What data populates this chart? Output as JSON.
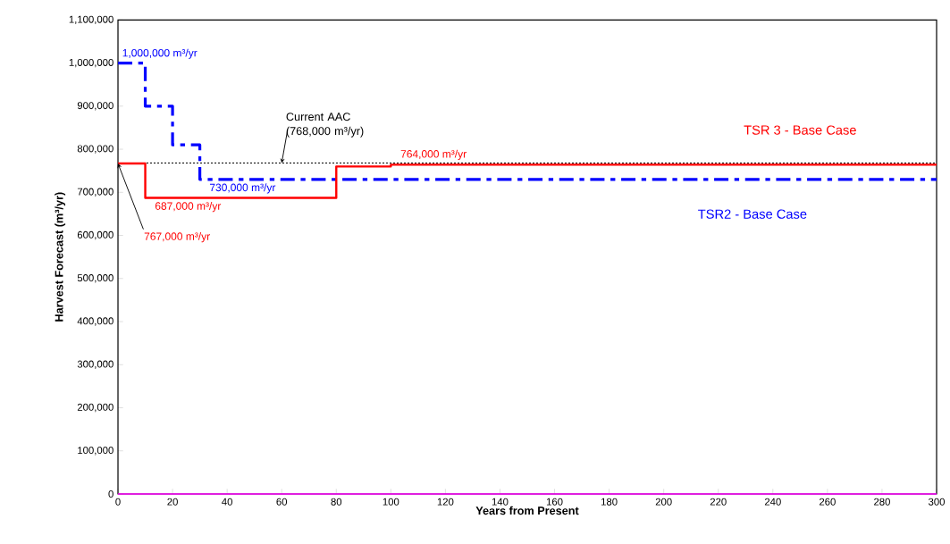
{
  "chart_data": {
    "type": "step",
    "xlabel": "Years from Present",
    "ylabel": "Harvest Forecast (m³/yr)",
    "series": [
      {
        "name": "TSR2 - Base Case",
        "color": "#0000ff",
        "line_style": "dashdot",
        "x": [
          0,
          10,
          20,
          30,
          300
        ],
        "values": [
          1000000,
          900000,
          810000,
          730000,
          730000
        ],
        "value_labels": [
          "1,000,000 m³/yr",
          null,
          null,
          "730,000 m³/yr",
          null
        ]
      },
      {
        "name": "TSR 3 - Base Case",
        "color": "#ff0000",
        "line_style": "solid",
        "x": [
          0,
          10,
          80,
          100,
          300
        ],
        "values": [
          767000,
          687000,
          760000,
          764000,
          764000
        ],
        "value_labels": [
          "767,000 m³/yr",
          "687,000 m³/yr",
          null,
          "764,000 m³/yr",
          null
        ]
      },
      {
        "color": "#ff00ff",
        "line_style": "solid",
        "x": [
          0,
          300
        ],
        "values": [
          0,
          0
        ]
      }
    ],
    "ref_lines": [
      {
        "axis": "y",
        "value": 768000,
        "label": "Current AAC (768,000 m³/yr)",
        "color": "#000000",
        "line_style": "dotted"
      }
    ],
    "xlim": [
      0,
      300
    ],
    "ylim": [
      0,
      1100000
    ],
    "xticks": [
      0,
      20,
      40,
      60,
      80,
      100,
      120,
      140,
      160,
      180,
      200,
      220,
      240,
      260,
      280,
      300
    ],
    "yticks": [
      0,
      {
        "value": 100000,
        "label": "100,000"
      },
      {
        "value": 200000,
        "label": "200,000"
      },
      {
        "value": 300000,
        "label": "300,000"
      },
      {
        "value": 400000,
        "label": "400,000"
      },
      {
        "value": 500000,
        "label": "500,000"
      },
      {
        "value": 600000,
        "label": "600,000"
      },
      {
        "value": 700000,
        "label": "700,000"
      },
      {
        "value": 800000,
        "label": "800,000"
      },
      {
        "value": 900000,
        "label": "900,000"
      },
      {
        "value": 1000000,
        "label": "1,000,000"
      },
      {
        "value": 1100000,
        "label": "1,100,000"
      }
    ],
    "marker": "none"
  }
}
